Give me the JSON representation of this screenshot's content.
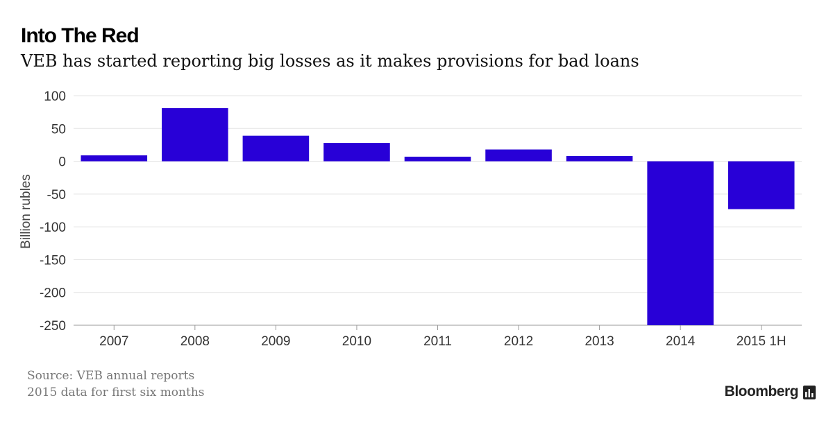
{
  "header": {
    "title": "Into The Red",
    "subtitle": "VEB has started reporting big losses as it makes provisions for bad loans"
  },
  "chart_data": {
    "type": "bar",
    "title": "Into The Red",
    "subtitle": "VEB has started reporting big losses as it makes provisions for bad loans",
    "categories": [
      "2007",
      "2008",
      "2009",
      "2010",
      "2011",
      "2012",
      "2013",
      "2014",
      "2015 1H"
    ],
    "values": [
      9,
      81,
      39,
      28,
      7,
      18,
      8,
      -250,
      -73
    ],
    "xlabel": "",
    "ylabel": "Billion rubles",
    "ylim": [
      -250,
      100
    ],
    "yticks": [
      100,
      50,
      0,
      -50,
      -100,
      -150,
      -200,
      -250
    ],
    "ytick_labels": [
      "100",
      "50",
      "0",
      "-50",
      "-100",
      "-150",
      "-200",
      "-250"
    ],
    "grid": true,
    "bar_color": "#2800d7"
  },
  "footer": {
    "source": "Source: VEB annual reports",
    "note": "2015 data for first six months",
    "brand": "Bloomberg",
    "brand_icon": "bloomberg-chart-icon"
  }
}
